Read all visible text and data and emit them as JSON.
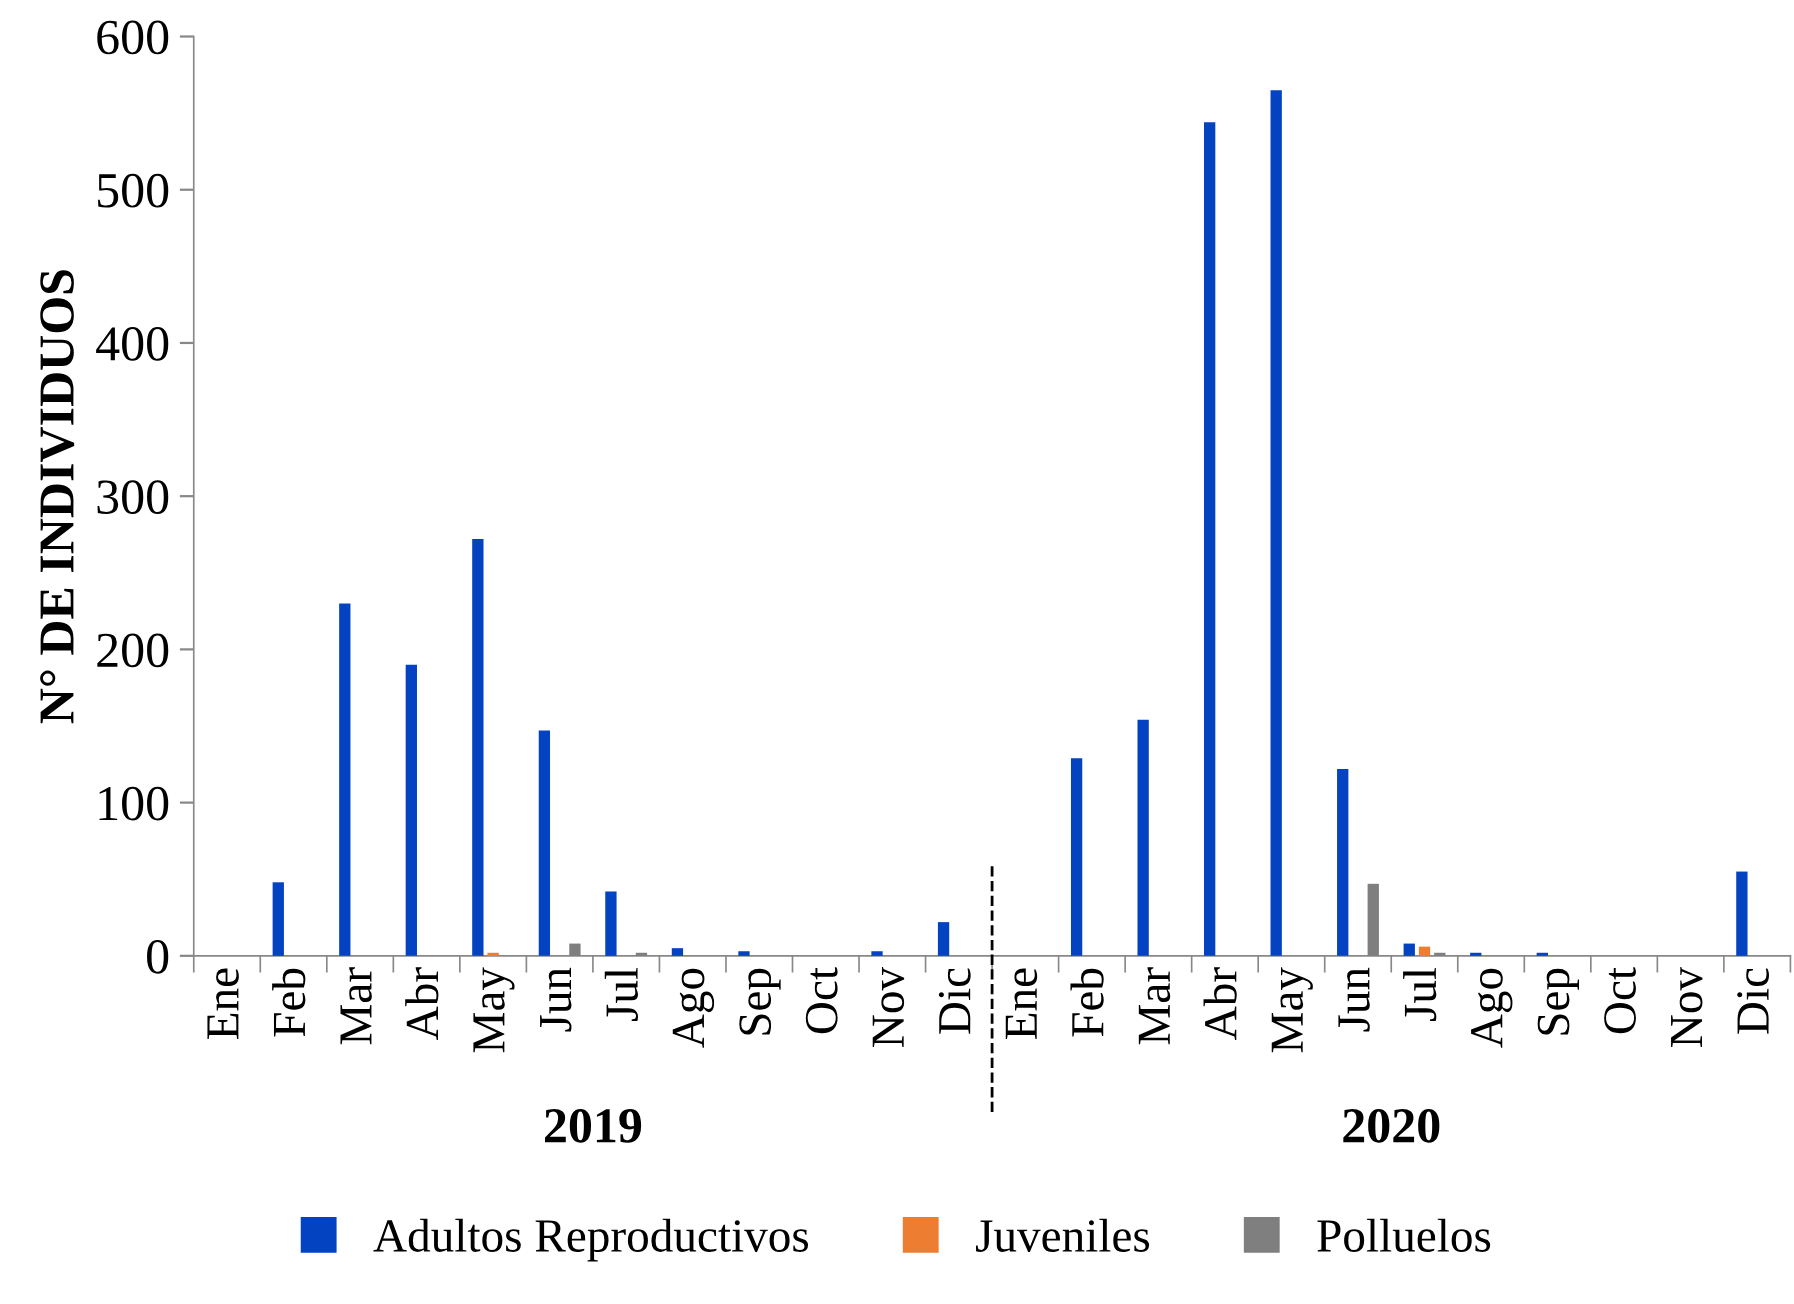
{
  "chart_data": {
    "type": "bar",
    "ylabel": "N° DE INDIVIDUOS",
    "categories": [
      "Ene",
      "Feb",
      "Mar",
      "Abr",
      "May",
      "Jun",
      "Jul",
      "Ago",
      "Sep",
      "Oct",
      "Nov",
      "Dic",
      "Ene",
      "Feb",
      "Mar",
      "Abr",
      "May",
      "Jun",
      "Jul",
      "Ago",
      "Sep",
      "Oct",
      "Nov",
      "Dic"
    ],
    "series": [
      {
        "name": "Adultos Reproductivos",
        "color": "#0343c1",
        "values": [
          0,
          48,
          230,
          190,
          272,
          147,
          42,
          5,
          3,
          0,
          3,
          22,
          0,
          129,
          154,
          544,
          565,
          122,
          8,
          2,
          2,
          0,
          0,
          55
        ]
      },
      {
        "name": "Juveniles",
        "color": "#ed7d31",
        "values": [
          0,
          0,
          0,
          0,
          2,
          0,
          0,
          0,
          0,
          0,
          0,
          0,
          0,
          0,
          0,
          0,
          0,
          0,
          6,
          0,
          0,
          0,
          0,
          0
        ]
      },
      {
        "name": "Polluelos",
        "color": "#7f7f7f",
        "values": [
          0,
          0,
          0,
          0,
          0,
          8,
          2,
          0,
          0,
          0,
          0,
          0,
          0,
          0,
          0,
          0,
          0,
          47,
          2,
          0,
          0,
          0,
          0,
          0
        ]
      }
    ],
    "ylim": [
      0,
      600
    ],
    "yticks": [
      0,
      100,
      200,
      300,
      400,
      500,
      600
    ],
    "annotations": [
      "2019",
      "2020"
    ],
    "grid": false,
    "legend": "bottom"
  }
}
